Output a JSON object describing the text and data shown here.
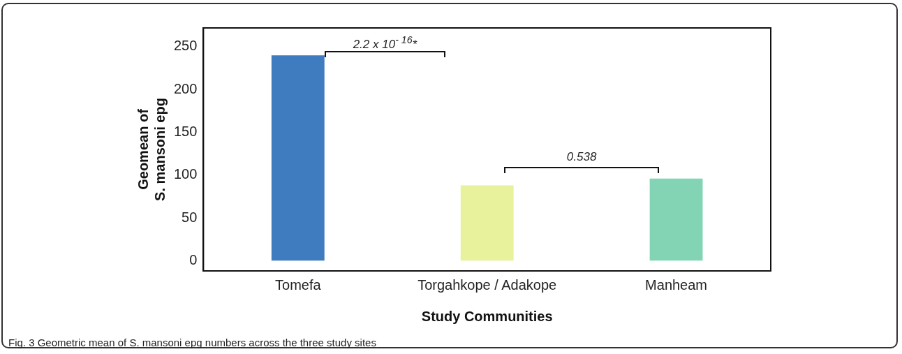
{
  "chart_data": {
    "type": "bar",
    "xlabel": "Study Communities",
    "ylabel": "Geomean of\nS. mansoni epg",
    "categories": [
      "Tomefa",
      "Torgahkope / Adakope",
      "Manheam"
    ],
    "values": [
      240,
      88,
      96
    ],
    "colors": [
      "#3f7bbf",
      "#e8f29c",
      "#82d4b4"
    ],
    "ylim": [
      -12,
      272
    ],
    "yticks": [
      0,
      50,
      100,
      150,
      200,
      250
    ],
    "grid": false,
    "legend": false,
    "annotations": [
      "2.2 x 10$^{- 16}$*",
      "0.538",
      "Fig. 3 Geometric mean of S. mansoni epg numbers across the three study sites"
    ]
  }
}
